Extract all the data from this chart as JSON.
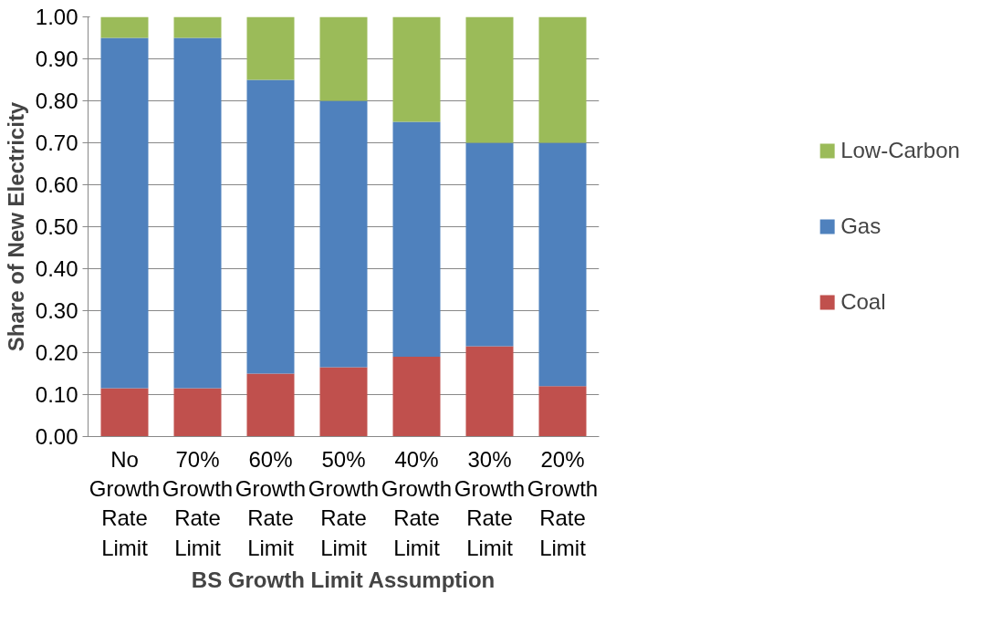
{
  "chart_data": {
    "type": "bar",
    "stacked": true,
    "xlabel": "BS Growth Limit Assumption",
    "ylabel": "Share of New Electricity",
    "categories": [
      "No Growth Rate Limit",
      "70% Growth Rate Limit",
      "60% Growth Rate Limit",
      "50% Growth Rate Limit",
      "40% Growth Rate Limit",
      "30% Growth Rate Limit",
      "20% Growth Rate Limit"
    ],
    "series": [
      {
        "name": "Coal",
        "color": "#c0504d",
        "values": [
          0.115,
          0.115,
          0.15,
          0.165,
          0.19,
          0.215,
          0.12
        ]
      },
      {
        "name": "Gas",
        "color": "#4f81bd",
        "values": [
          0.835,
          0.835,
          0.7,
          0.635,
          0.56,
          0.485,
          0.58
        ]
      },
      {
        "name": "Low-Carbon",
        "color": "#9bbb59",
        "values": [
          0.05,
          0.05,
          0.15,
          0.2,
          0.25,
          0.3,
          0.3
        ]
      }
    ],
    "ylim": [
      0,
      1
    ],
    "yticks": [
      {
        "value": 0,
        "label": "0.00"
      },
      {
        "value": 0.1,
        "label": "0.10"
      },
      {
        "value": 0.2,
        "label": "0.20"
      },
      {
        "value": 0.3,
        "label": "0.30"
      },
      {
        "value": 0.4,
        "label": "0.40"
      },
      {
        "value": 0.5,
        "label": "0.50"
      },
      {
        "value": 0.6,
        "label": "0.60"
      },
      {
        "value": 0.7,
        "label": "0.70"
      },
      {
        "value": 0.8,
        "label": "0.80"
      },
      {
        "value": 0.9,
        "label": "0.90"
      },
      {
        "value": 1,
        "label": "1.00"
      }
    ],
    "grid": "y",
    "legend": "right"
  }
}
